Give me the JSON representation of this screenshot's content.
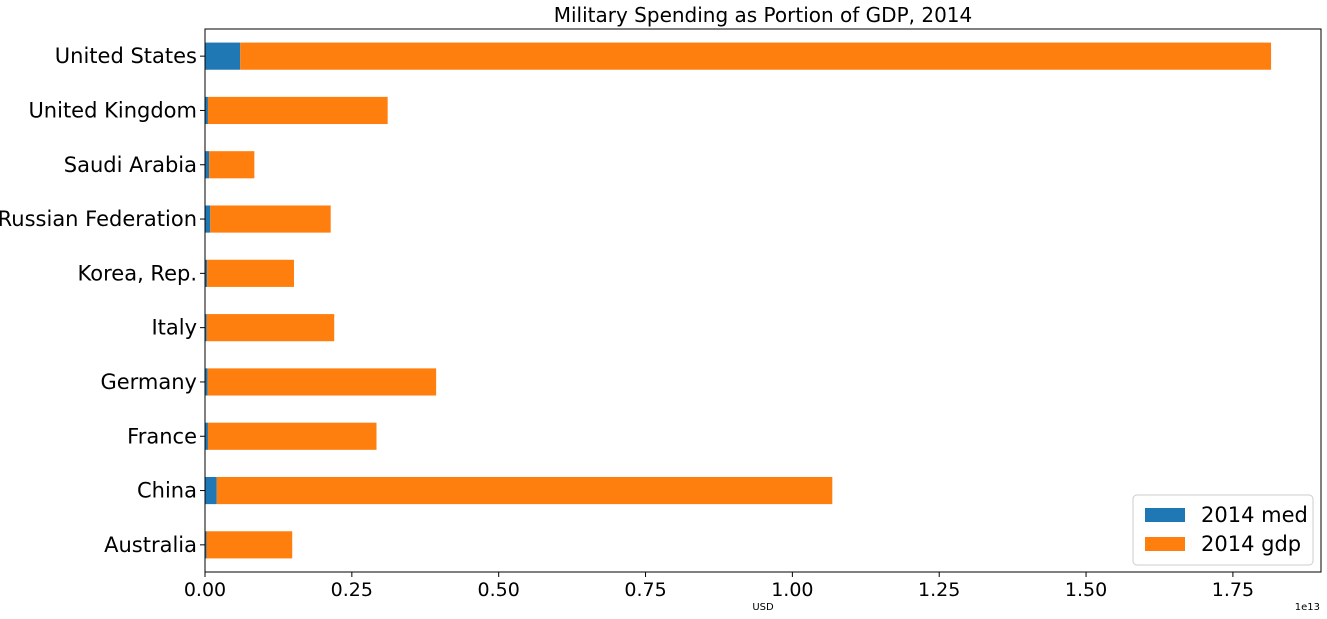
{
  "chart_data": {
    "type": "bar",
    "orientation": "horizontal",
    "stacked": true,
    "title": "Military Spending as Portion of GDP, 2014",
    "xlabel": "USD",
    "ylabel": "",
    "x_exponent_label": "1e13",
    "xlim": [
      0,
      19000000000000
    ],
    "x_ticks": [
      0,
      2500000000000,
      5000000000000,
      7500000000000,
      10000000000000,
      12500000000000,
      15000000000000,
      17500000000000
    ],
    "x_tick_labels": [
      "0.00",
      "0.25",
      "0.50",
      "0.75",
      "1.00",
      "1.25",
      "1.50",
      "1.75"
    ],
    "grid": false,
    "legend_position": "bottom-right",
    "categories": [
      "Australia",
      "China",
      "France",
      "Germany",
      "Italy",
      "Korea, Rep.",
      "Russian Federation",
      "Saudi Arabia",
      "United Kingdom",
      "United States"
    ],
    "series": [
      {
        "name": "2014 med",
        "color": "#1f77b4",
        "values": [
          25000000000,
          200000000000,
          50000000000,
          45000000000,
          30000000000,
          35000000000,
          90000000000,
          70000000000,
          50000000000,
          600000000000
        ]
      },
      {
        "name": "2014 gdp",
        "color": "#ff7f0e",
        "values": [
          1460000000000,
          10480000000000,
          2870000000000,
          3890000000000,
          2170000000000,
          1480000000000,
          2050000000000,
          770000000000,
          3060000000000,
          17550000000000
        ]
      }
    ]
  }
}
